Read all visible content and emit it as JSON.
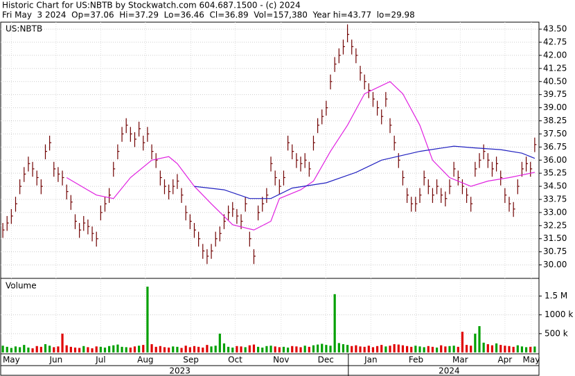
{
  "chart_data": {
    "type": "ohlc",
    "title": "Historic Chart for US:NBTB by Stockwatch.com 604.687.1500 - (c) 2024",
    "subtitle": "Fri May  3 2024  Op=37.06  Hi=37.29  Lo=36.46  Cl=36.89  Vol=157,380  Year hi=43.77  lo=29.98",
    "symbol": "US:NBTB",
    "volume_label": "Volume",
    "xlim": [
      -0.5,
      126
    ],
    "xticks": [
      {
        "value": 2,
        "label": "May"
      },
      {
        "value": 12.5,
        "label": "Jun"
      },
      {
        "value": 23,
        "label": "Jul"
      },
      {
        "value": 33.5,
        "label": "Aug"
      },
      {
        "value": 44.2,
        "label": "Sep"
      },
      {
        "value": 54.6,
        "label": "Oct"
      },
      {
        "value": 65.4,
        "label": "Nov"
      },
      {
        "value": 75.9,
        "label": "Dec"
      },
      {
        "value": 86.5,
        "label": "Jan"
      },
      {
        "value": 97.1,
        "label": "Feb"
      },
      {
        "value": 107.5,
        "label": "Mar"
      },
      {
        "value": 118,
        "label": "Apr"
      },
      {
        "value": 124.2,
        "label": "May"
      }
    ],
    "year_labels": [
      {
        "value": 41.6,
        "label": "2023"
      },
      {
        "value": 104.9,
        "label": "2024"
      }
    ],
    "ylim": [
      29.23,
      43.9
    ],
    "yticks": [
      {
        "value": 30,
        "label": "30.00"
      },
      {
        "value": 30.75,
        "label": "30.75"
      },
      {
        "value": 31.5,
        "label": "31.50"
      },
      {
        "value": 32.25,
        "label": "32.25"
      },
      {
        "value": 33,
        "label": "33.00"
      },
      {
        "value": 33.75,
        "label": "33.75"
      },
      {
        "value": 34.5,
        "label": "34.50"
      },
      {
        "value": 35.25,
        "label": "35.25"
      },
      {
        "value": 36,
        "label": "36.00"
      },
      {
        "value": 36.75,
        "label": "36.75"
      },
      {
        "value": 37.5,
        "label": "37.50"
      },
      {
        "value": 38.25,
        "label": "38.25"
      },
      {
        "value": 39,
        "label": "39.00"
      },
      {
        "value": 39.75,
        "label": "39.75"
      },
      {
        "value": 40.5,
        "label": "40.50"
      },
      {
        "value": 41.25,
        "label": "41.25"
      },
      {
        "value": 42,
        "label": "42.00"
      },
      {
        "value": 42.75,
        "label": "42.75"
      },
      {
        "value": 43.5,
        "label": "43.50"
      }
    ],
    "vlim": [
      0,
      1970000
    ],
    "vticks": [
      {
        "value": 500000,
        "label": "500 k"
      },
      {
        "value": 1000000,
        "label": "1000 k"
      },
      {
        "value": 1500000,
        "label": "1.5 M"
      }
    ],
    "bar_color": "#700000",
    "up_color": "#00a000",
    "down_color": "#e00000",
    "grid": true,
    "high": [
      32.4,
      32.8,
      33.2,
      33.9,
      34.9,
      35.6,
      36.2,
      35.9,
      35.4,
      34.9,
      36.9,
      37.4,
      35.9,
      35.6,
      35.4,
      34.6,
      34.0,
      32.9,
      32.4,
      32.8,
      32.6,
      32.2,
      31.9,
      33.4,
      33.9,
      34.4,
      35.9,
      36.9,
      37.9,
      38.4,
      37.9,
      37.6,
      38.2,
      37.4,
      37.9,
      36.9,
      36.4,
      35.4,
      34.9,
      34.6,
      34.9,
      35.2,
      34.4,
      33.4,
      32.9,
      32.4,
      31.9,
      31.2,
      30.9,
      31.2,
      31.9,
      32.2,
      32.9,
      33.4,
      33.6,
      33.2,
      32.9,
      33.9,
      31.9,
      30.9,
      33.4,
      33.9,
      34.4,
      36.2,
      35.4,
      34.9,
      35.4,
      37.4,
      36.9,
      36.4,
      36.2,
      36.4,
      35.9,
      37.4,
      38.4,
      38.9,
      39.4,
      40.9,
      41.9,
      42.4,
      42.9,
      43.77,
      42.9,
      42.4,
      41.4,
      40.9,
      40.4,
      39.9,
      39.4,
      38.9,
      39.9,
      38.4,
      37.4,
      36.4,
      35.4,
      34.4,
      33.9,
      33.9,
      34.4,
      35.4,
      34.9,
      34.4,
      34.9,
      34.4,
      34.2,
      34.9,
      35.9,
      35.4,
      34.9,
      34.4,
      33.9,
      35.9,
      36.4,
      36.9,
      36.4,
      35.9,
      36.2,
      35.4,
      34.4,
      33.9,
      33.6,
      34.9,
      35.9,
      36.2,
      35.9,
      37.29
    ],
    "low": [
      31.55,
      31.95,
      32.35,
      33.05,
      34.05,
      34.75,
      35.35,
      35.05,
      34.55,
      34.05,
      36.05,
      36.55,
      35.05,
      34.75,
      34.55,
      33.75,
      33.15,
      32.05,
      31.55,
      31.95,
      31.75,
      31.35,
      31.05,
      32.55,
      33.05,
      33.55,
      35.05,
      36.05,
      37.05,
      37.55,
      37.05,
      36.75,
      37.35,
      36.55,
      37.05,
      36.05,
      35.55,
      34.55,
      34.05,
      33.75,
      34.05,
      34.35,
      33.55,
      32.55,
      32.05,
      31.55,
      31.05,
      30.35,
      30.05,
      30.35,
      31.05,
      31.35,
      32.05,
      32.55,
      32.75,
      32.35,
      32.05,
      33.05,
      31.05,
      30.05,
      32.55,
      33.05,
      33.55,
      35.35,
      34.55,
      34.05,
      34.55,
      36.55,
      36.05,
      35.55,
      35.35,
      35.55,
      35.05,
      36.55,
      37.55,
      38.05,
      38.55,
      40.05,
      41.05,
      41.55,
      42.05,
      42.75,
      42.05,
      41.55,
      40.55,
      40.05,
      39.55,
      39.05,
      38.55,
      38.05,
      39.05,
      37.55,
      36.55,
      35.55,
      34.55,
      33.55,
      33.05,
      33.05,
      33.55,
      34.55,
      34.05,
      33.55,
      34.05,
      33.55,
      33.35,
      34.05,
      35.05,
      34.55,
      34.05,
      33.55,
      33.05,
      35.05,
      35.55,
      36.05,
      35.55,
      35.05,
      35.35,
      34.55,
      33.55,
      33.05,
      32.75,
      34.05,
      35.05,
      35.35,
      35.05,
      36.46
    ],
    "close": [
      32.0,
      32.4,
      32.8,
      33.5,
      34.5,
      35.2,
      35.8,
      35.5,
      35.0,
      34.5,
      36.5,
      37.0,
      35.5,
      35.2,
      35.0,
      34.2,
      33.6,
      32.5,
      32.0,
      32.4,
      32.2,
      31.8,
      31.5,
      33.0,
      33.5,
      34.0,
      35.5,
      36.5,
      37.5,
      38.0,
      37.5,
      37.2,
      37.8,
      37.0,
      37.5,
      36.5,
      36.0,
      35.0,
      34.5,
      34.2,
      34.5,
      34.8,
      34.0,
      33.0,
      32.5,
      32.0,
      31.5,
      30.8,
      30.5,
      30.8,
      31.5,
      31.8,
      32.5,
      33.0,
      33.2,
      32.8,
      32.5,
      33.5,
      31.5,
      30.5,
      33.0,
      33.5,
      34.0,
      35.8,
      35.0,
      34.5,
      35.0,
      37.0,
      36.5,
      36.0,
      35.8,
      36.0,
      35.5,
      37.0,
      38.0,
      38.5,
      39.0,
      40.5,
      41.5,
      42.0,
      42.5,
      43.2,
      42.5,
      42.0,
      41.0,
      40.5,
      40.0,
      39.5,
      39.0,
      38.5,
      39.5,
      38.0,
      37.0,
      36.0,
      35.0,
      34.0,
      33.5,
      33.5,
      34.0,
      35.0,
      34.5,
      34.0,
      34.5,
      34.0,
      33.8,
      34.5,
      35.5,
      35.0,
      34.5,
      34.0,
      33.5,
      35.5,
      36.0,
      36.5,
      36.0,
      35.5,
      35.8,
      35.0,
      34.0,
      33.5,
      33.2,
      34.5,
      35.5,
      35.8,
      35.5,
      36.89
    ],
    "volume": [
      180000,
      150000,
      120000,
      160000,
      140000,
      200000,
      130000,
      110000,
      170000,
      150000,
      220000,
      180000,
      140000,
      160000,
      500000,
      190000,
      150000,
      130000,
      120000,
      170000,
      140000,
      110000,
      160000,
      150000,
      130000,
      170000,
      190000,
      210000,
      150000,
      140000,
      130000,
      160000,
      180000,
      200000,
      1750000,
      220000,
      150000,
      170000,
      140000,
      130000,
      160000,
      150000,
      120000,
      180000,
      140000,
      170000,
      150000,
      130000,
      200000,
      160000,
      180000,
      500000,
      240000,
      150000,
      130000,
      170000,
      160000,
      140000,
      190000,
      210000,
      150000,
      130000,
      170000,
      180000,
      160000,
      140000,
      150000,
      130000,
      170000,
      160000,
      140000,
      180000,
      150000,
      190000,
      210000,
      230000,
      200000,
      180000,
      1550000,
      250000,
      220000,
      200000,
      170000,
      190000,
      160000,
      150000,
      180000,
      140000,
      170000,
      200000,
      160000,
      180000,
      220000,
      210000,
      190000,
      170000,
      150000,
      180000,
      160000,
      140000,
      170000,
      150000,
      130000,
      190000,
      160000,
      170000,
      180000,
      150000,
      550000,
      200000,
      180000,
      500000,
      700000,
      260000,
      220000,
      190000,
      240000,
      200000,
      180000,
      170000,
      150000,
      190000,
      160000,
      140000,
      150000,
      157380
    ],
    "series": [
      {
        "name": "MA short",
        "color": "#e020e0",
        "x": [
          15,
          22,
          26,
          30,
          35,
          39,
          41,
          45,
          49,
          54,
          59,
          63,
          65,
          70,
          73,
          77,
          81,
          85,
          91,
          94,
          98,
          101,
          105,
          110,
          114,
          119,
          125
        ],
        "values": [
          35.0,
          34.0,
          33.8,
          35.0,
          36.0,
          36.2,
          35.8,
          34.5,
          33.5,
          32.3,
          32.0,
          32.5,
          33.8,
          34.3,
          34.8,
          36.5,
          38.0,
          39.8,
          40.5,
          39.8,
          38.0,
          36.0,
          35.0,
          34.5,
          34.8,
          35.0,
          35.3
        ]
      },
      {
        "name": "MA long",
        "color": "#2020c0",
        "x": [
          45,
          52,
          58,
          63,
          68,
          76,
          83,
          89,
          98,
          106,
          111,
          117,
          122,
          125
        ],
        "values": [
          34.5,
          34.3,
          33.8,
          33.8,
          34.4,
          34.7,
          35.3,
          36.0,
          36.5,
          36.8,
          36.7,
          36.6,
          36.4,
          36.1
        ]
      }
    ]
  }
}
